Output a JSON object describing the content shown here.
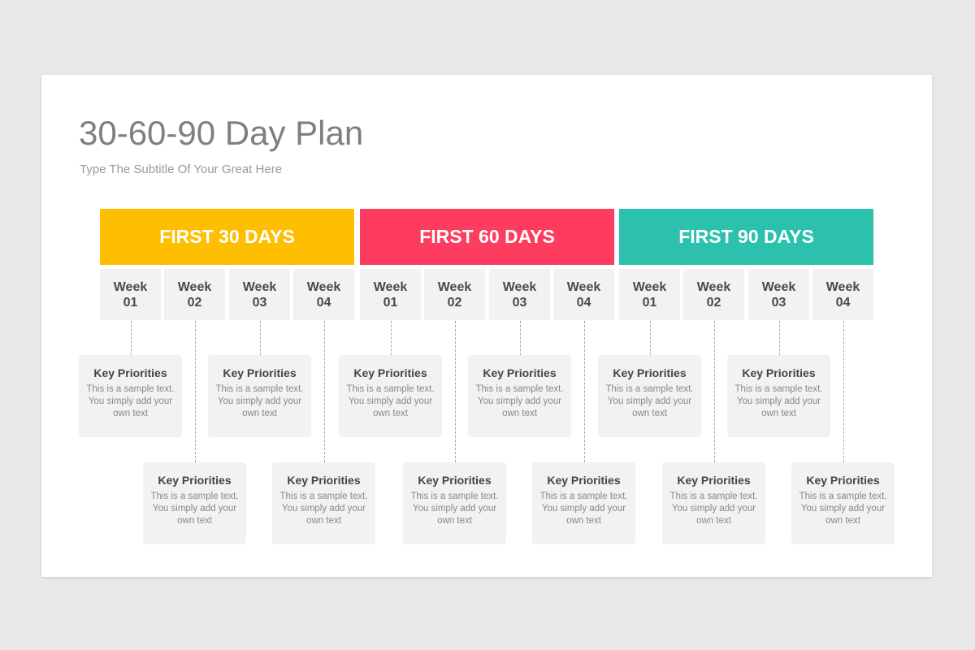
{
  "title": "30-60-90 Day Plan",
  "subtitle": "Type The Subtitle Of Your Great Here",
  "phases": [
    {
      "label": "FIRST 30 DAYS",
      "color": "#fdbf00",
      "weeks": [
        "Week\n01",
        "Week\n02",
        "Week\n03",
        "Week\n04"
      ]
    },
    {
      "label": "FIRST 60 DAYS",
      "color": "#fe3c5f",
      "weeks": [
        "Week\n01",
        "Week\n02",
        "Week\n03",
        "Week\n04"
      ]
    },
    {
      "label": "FIRST 90 DAYS",
      "color": "#2cc1ad",
      "weeks": [
        "Week\n01",
        "Week\n02",
        "Week\n03",
        "Week\n04"
      ]
    }
  ],
  "card": {
    "title": "Key Priorities",
    "body": "This is a sample text. You simply add your own text"
  }
}
